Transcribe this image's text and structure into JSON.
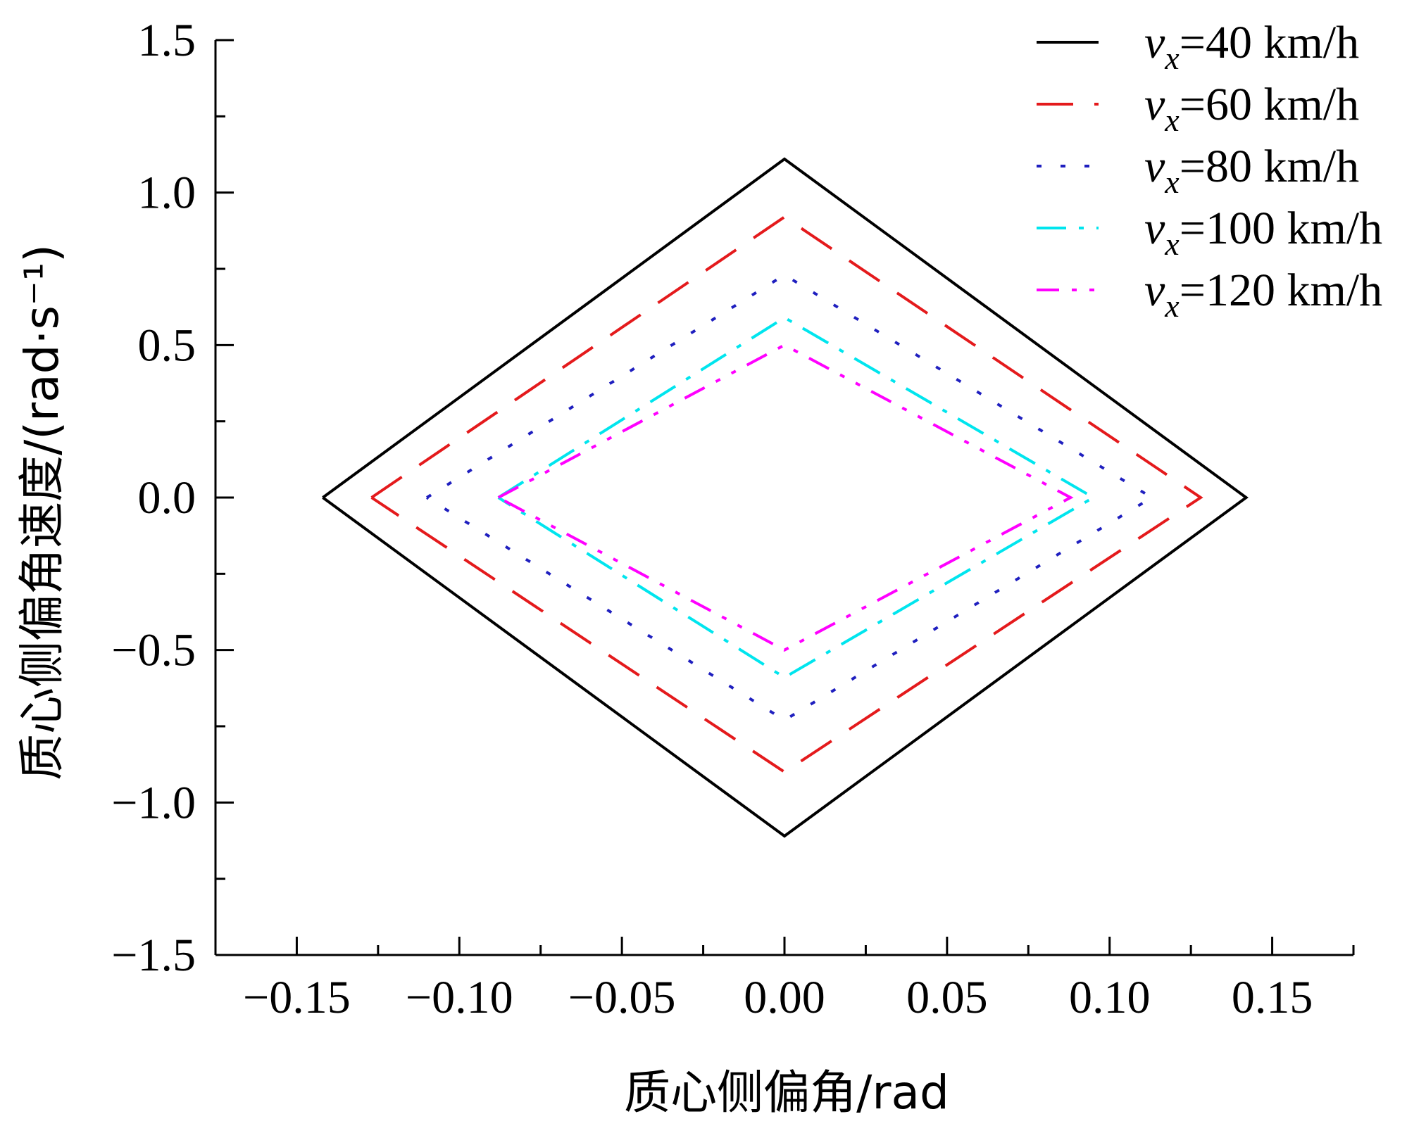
{
  "chart_data": {
    "type": "line",
    "xlabel": "质心侧偏角/rad",
    "ylabel": "质心侧偏角速度/(rad·s⁻¹)",
    "xlim": [
      -0.175,
      0.175
    ],
    "ylim": [
      -1.5,
      1.5
    ],
    "xticks": [
      -0.15,
      -0.1,
      -0.05,
      0.0,
      0.05,
      0.1,
      0.15
    ],
    "xtick_labels": [
      "−0.15",
      "−0.10",
      "−0.05",
      "0.00",
      "0.05",
      "0.10",
      "0.15"
    ],
    "yticks": [
      -1.5,
      -1.0,
      -0.5,
      0.0,
      0.5,
      1.0,
      1.5
    ],
    "ytick_labels": [
      "−1.5",
      "−1.0",
      "−0.5",
      "0.0",
      "0.5",
      "1.0",
      "1.5"
    ],
    "legend_position": "top-right",
    "series": [
      {
        "name": "vx=40 km/h",
        "var": "v",
        "sub": "x",
        "rest": "=40 km/h",
        "color": "#000000",
        "dash": "",
        "points": [
          [
            -0.142,
            0.0
          ],
          [
            0.0,
            1.11
          ],
          [
            0.142,
            0.0
          ],
          [
            0.0,
            -1.11
          ],
          [
            -0.142,
            0.0
          ]
        ]
      },
      {
        "name": "vx=60 km/h",
        "var": "v",
        "sub": "x",
        "rest": "=60 km/h",
        "color": "#e41a1c",
        "dash": "52,30",
        "points": [
          [
            -0.127,
            0.0
          ],
          [
            0.0,
            0.92
          ],
          [
            0.128,
            0.0
          ],
          [
            0.0,
            -0.9
          ],
          [
            -0.127,
            0.0
          ]
        ]
      },
      {
        "name": "vx=80 km/h",
        "var": "v",
        "sub": "x",
        "rest": "=80 km/h",
        "color": "#1f1fbf",
        "dash": "7,27",
        "points": [
          [
            -0.11,
            0.0
          ],
          [
            0.0,
            0.73
          ],
          [
            0.113,
            0.0
          ],
          [
            0.0,
            -0.73
          ],
          [
            -0.11,
            0.0
          ]
        ]
      },
      {
        "name": "vx=100 km/h",
        "var": "v",
        "sub": "x",
        "rest": "=100 km/h",
        "color": "#00e5ee",
        "dash": "42,18,7,18",
        "points": [
          [
            -0.088,
            0.0
          ],
          [
            0.0,
            0.59
          ],
          [
            0.095,
            0.0
          ],
          [
            0.0,
            -0.59
          ],
          [
            -0.088,
            0.0
          ]
        ]
      },
      {
        "name": "vx=120 km/h",
        "var": "v",
        "sub": "x",
        "rest": "=120 km/h",
        "color": "#ff00ff",
        "dash": "32,18,7,18,7,18",
        "points": [
          [
            -0.088,
            0.0
          ],
          [
            0.0,
            0.5
          ],
          [
            0.088,
            0.0
          ],
          [
            0.0,
            -0.5
          ],
          [
            -0.088,
            0.0
          ]
        ]
      }
    ]
  }
}
